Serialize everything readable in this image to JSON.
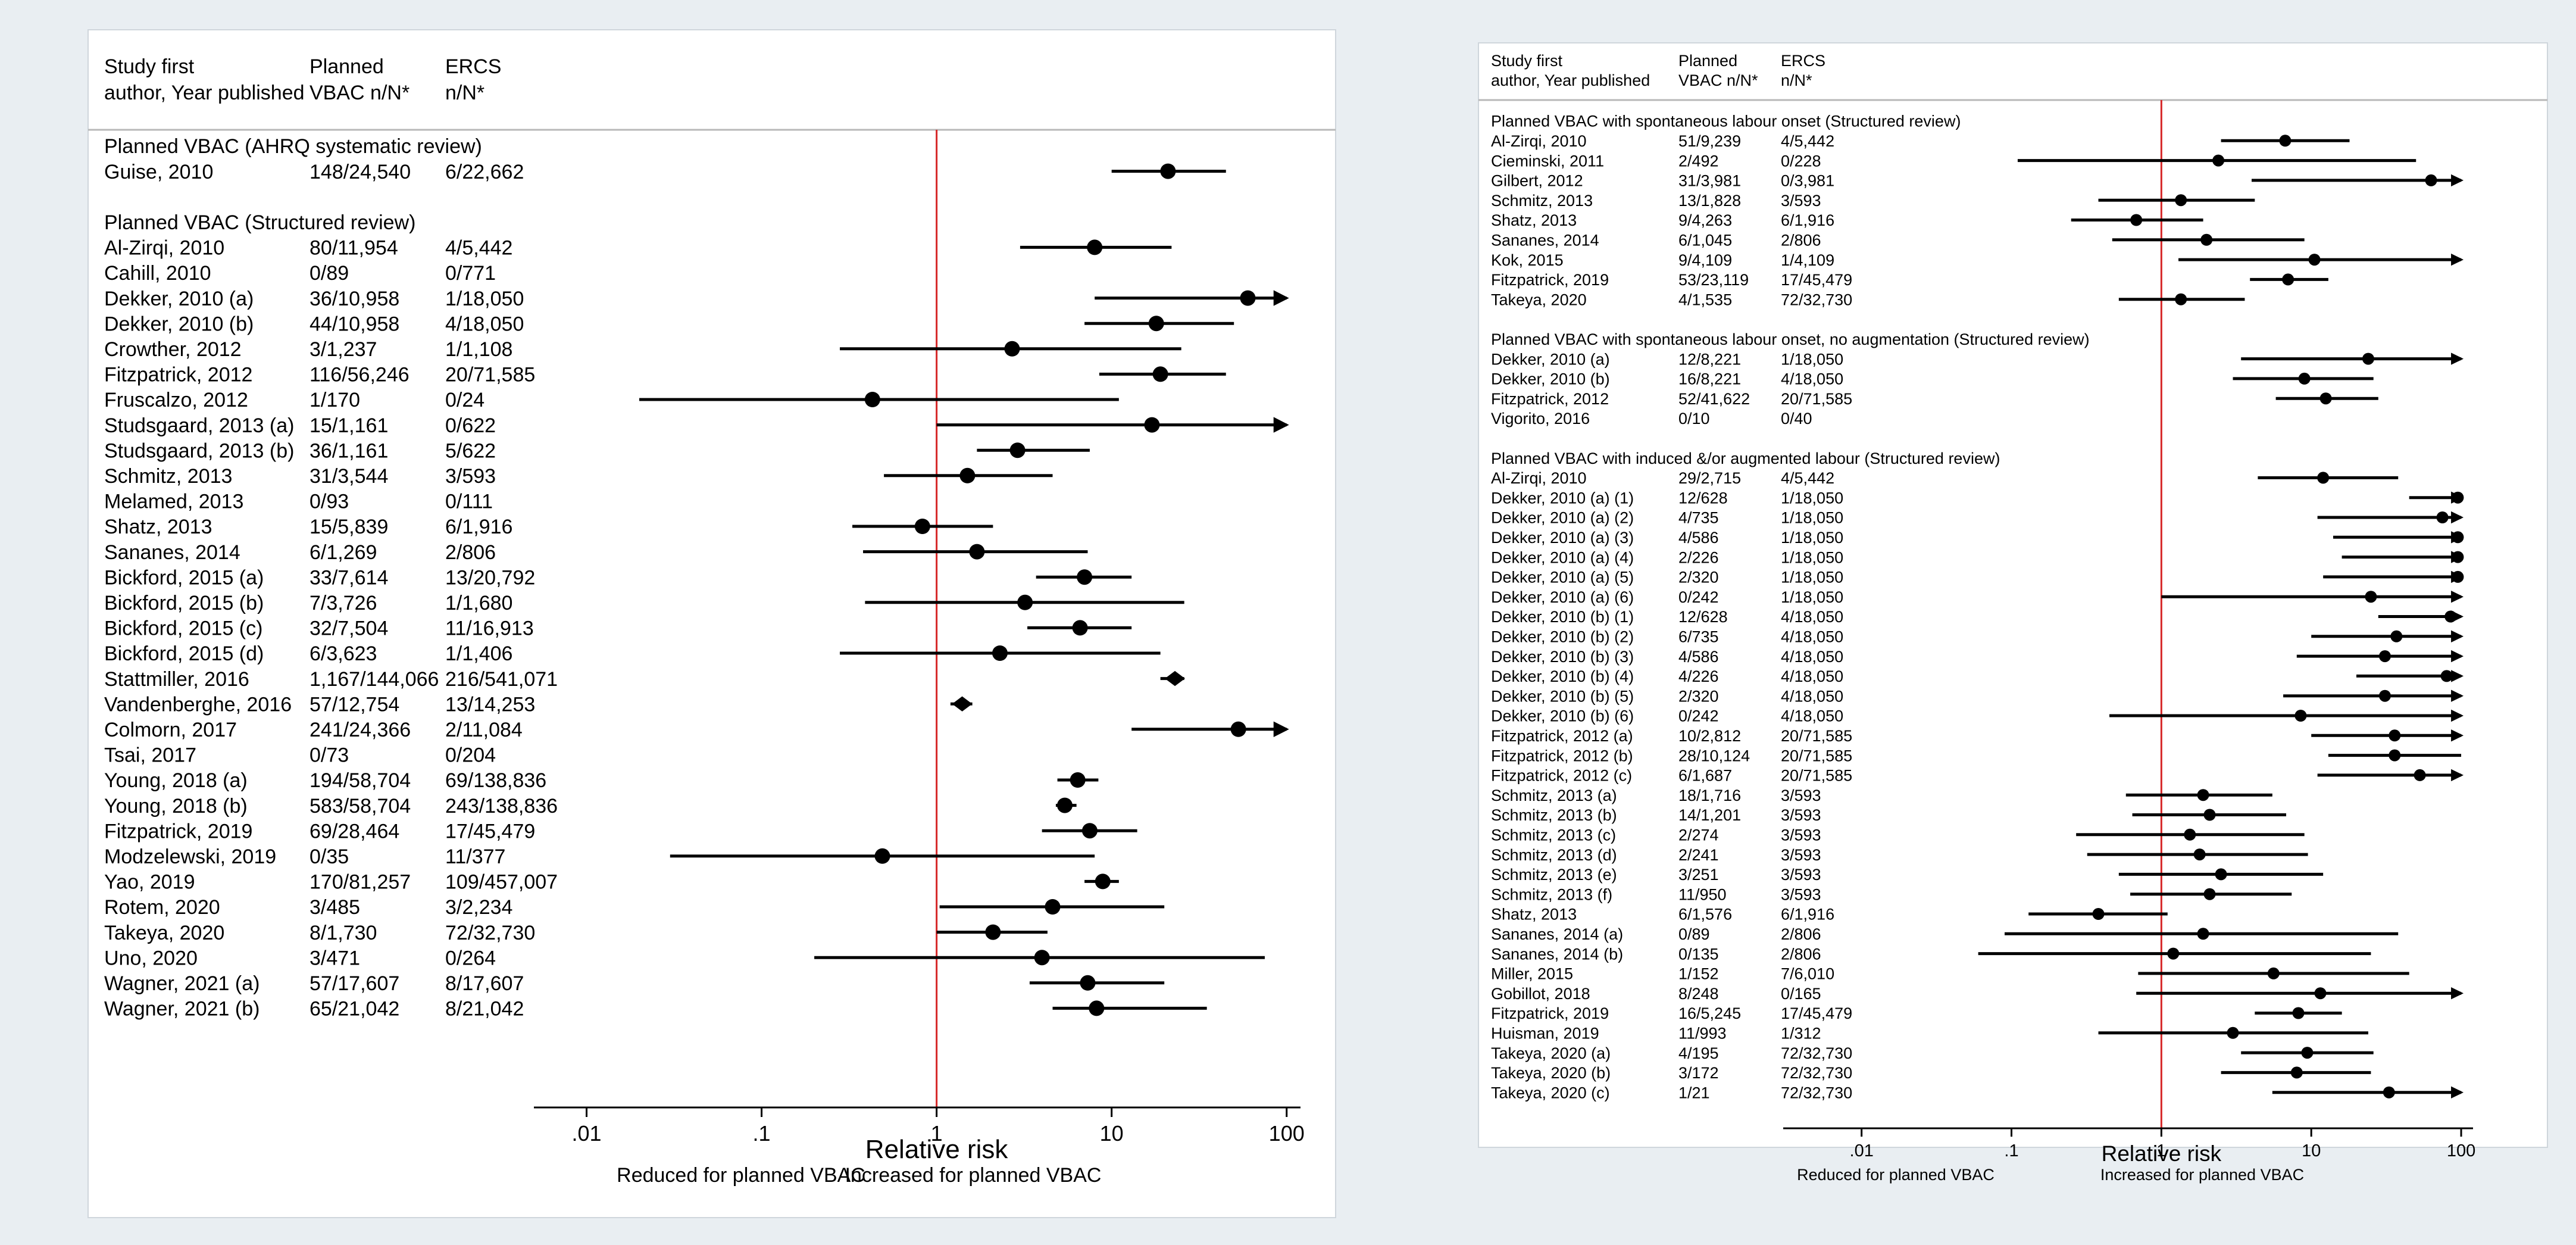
{
  "chart_data": [
    {
      "type": "forest",
      "scale": "log",
      "xlim": [
        0.005,
        120
      ],
      "reference_line": 1,
      "reference_color": "#d62728",
      "xticks": [
        {
          "value": 0.01,
          "label": ".01"
        },
        {
          "value": 0.1,
          "label": ".1"
        },
        {
          "value": 1,
          "label": "1"
        },
        {
          "value": 10,
          "label": "10"
        },
        {
          "value": 100,
          "label": "100"
        }
      ],
      "xlabel": "Relative risk",
      "footer_left": "Reduced for planned VBAC",
      "footer_right": "Increased for planned VBAC",
      "header": {
        "col1": [
          "Study first",
          "author, Year published"
        ],
        "col2": [
          "Planned",
          "VBAC n/N*"
        ],
        "col3": [
          "ERCS",
          "n/N*"
        ]
      },
      "rows": [
        {
          "kind": "group",
          "label": "Planned VBAC (AHRQ systematic review)"
        },
        {
          "kind": "study",
          "label": "Guise, 2010",
          "vbac": "148/24,540",
          "ercs": "6/22,662",
          "rr": 21,
          "lo": 10,
          "hi": 45
        },
        {
          "kind": "blank"
        },
        {
          "kind": "group",
          "label": "Planned VBAC (Structured review)"
        },
        {
          "kind": "study",
          "label": "Al-Zirqi, 2010",
          "vbac": "80/11,954",
          "ercs": "4/5,442",
          "rr": 8,
          "lo": 3,
          "hi": 22
        },
        {
          "kind": "study",
          "label": "Cahill, 2010",
          "vbac": "0/89",
          "ercs": "0/771"
        },
        {
          "kind": "study",
          "label": "Dekker, 2010 (a)",
          "vbac": "36/10,958",
          "ercs": "1/18,050",
          "rr": 60,
          "lo": 8,
          "hi": 100,
          "arrow": true
        },
        {
          "kind": "study",
          "label": "Dekker, 2010 (b)",
          "vbac": "44/10,958",
          "ercs": "4/18,050",
          "rr": 18,
          "lo": 7,
          "hi": 50
        },
        {
          "kind": "study",
          "label": "Crowther, 2012",
          "vbac": "3/1,237",
          "ercs": "1/1,108",
          "rr": 2.7,
          "lo": 0.28,
          "hi": 25
        },
        {
          "kind": "study",
          "label": "Fitzpatrick, 2012",
          "vbac": "116/56,246",
          "ercs": "20/71,585",
          "rr": 19,
          "lo": 8.5,
          "hi": 45
        },
        {
          "kind": "study",
          "label": "Fruscalzo, 2012",
          "vbac": "1/170",
          "ercs": "0/24",
          "rr": 0.43,
          "lo": 0.02,
          "hi": 11
        },
        {
          "kind": "study",
          "label": "Studsgaard,  2013 (a)",
          "vbac": "15/1,161",
          "ercs": "0/622",
          "rr": 17,
          "lo": 1,
          "hi": 100,
          "arrow": true
        },
        {
          "kind": "study",
          "label": "Studsgaard,  2013 (b)",
          "vbac": "36/1,161",
          "ercs": "5/622",
          "rr": 2.9,
          "lo": 1.7,
          "hi": 7.5
        },
        {
          "kind": "study",
          "label": "Schmitz, 2013",
          "vbac": "31/3,544",
          "ercs": "3/593",
          "rr": 1.5,
          "lo": 0.5,
          "hi": 4.6
        },
        {
          "kind": "study",
          "label": "Melamed, 2013",
          "vbac": "0/93",
          "ercs": "0/111"
        },
        {
          "kind": "study",
          "label": "Shatz, 2013",
          "vbac": "15/5,839",
          "ercs": "6/1,916",
          "rr": 0.83,
          "lo": 0.33,
          "hi": 2.1
        },
        {
          "kind": "study",
          "label": "Sananes, 2014",
          "vbac": "6/1,269",
          "ercs": "2/806",
          "rr": 1.7,
          "lo": 0.38,
          "hi": 7.3
        },
        {
          "kind": "study",
          "label": "Bickford, 2015 (a)",
          "vbac": "33/7,614",
          "ercs": "13/20,792",
          "rr": 7,
          "lo": 3.7,
          "hi": 13
        },
        {
          "kind": "study",
          "label": "Bickford, 2015 (b)",
          "vbac": "7/3,726",
          "ercs": "1/1,680",
          "rr": 3.2,
          "lo": 0.39,
          "hi": 26
        },
        {
          "kind": "study",
          "label": "Bickford, 2015 (c)",
          "vbac": "32/7,504",
          "ercs": "11/16,913",
          "rr": 6.6,
          "lo": 3.3,
          "hi": 13
        },
        {
          "kind": "study",
          "label": "Bickford, 2015 (d)",
          "vbac": "6/3,623",
          "ercs": "1/1,406",
          "rr": 2.3,
          "lo": 0.28,
          "hi": 19
        },
        {
          "kind": "study",
          "label": "Stattmiller, 2016",
          "vbac": "1,167/144,066",
          "ercs": "216/541,071",
          "rr": 23,
          "lo": 19,
          "hi": 26,
          "diamond": true
        },
        {
          "kind": "study",
          "label": "Vandenberghe, 2016",
          "vbac": "57/12,754",
          "ercs": "13/14,253",
          "rr": 1.4,
          "lo": 1.2,
          "hi": 1.6,
          "diamond": true
        },
        {
          "kind": "study",
          "label": "Colmorn, 2017",
          "vbac": "241/24,366",
          "ercs": "2/11,084",
          "rr": 53,
          "lo": 13,
          "hi": 100,
          "arrow": true
        },
        {
          "kind": "study",
          "label": "Tsai, 2017",
          "vbac": "0/73",
          "ercs": "0/204"
        },
        {
          "kind": "study",
          "label": "Young, 2018 (a)",
          "vbac": "194/58,704",
          "ercs": "69/138,836",
          "rr": 6.4,
          "lo": 4.9,
          "hi": 8.4
        },
        {
          "kind": "study",
          "label": "Young, 2018 (b)",
          "vbac": "583/58,704",
          "ercs": "243/138,836",
          "rr": 5.4,
          "lo": 4.8,
          "hi": 6.3
        },
        {
          "kind": "study",
          "label": "Fitzpatrick, 2019",
          "vbac": "69/28,464",
          "ercs": "17/45,479",
          "rr": 7.5,
          "lo": 4,
          "hi": 14
        },
        {
          "kind": "study",
          "label": "Modzelewski, 2019",
          "vbac": "0/35",
          "ercs": "11/377",
          "rr": 0.49,
          "lo": 0.03,
          "hi": 8
        },
        {
          "kind": "study",
          "label": "Yao, 2019",
          "vbac": "170/81,257",
          "ercs": "109/457,007",
          "rr": 8.9,
          "lo": 7,
          "hi": 11
        },
        {
          "kind": "study",
          "label": "Rotem, 2020",
          "vbac": "3/485",
          "ercs": "3/2,234",
          "rr": 4.6,
          "lo": 1.04,
          "hi": 20
        },
        {
          "kind": "study",
          "label": "Takeya, 2020",
          "vbac": "8/1,730",
          "ercs": "72/32,730",
          "rr": 2.1,
          "lo": 1,
          "hi": 4.3
        },
        {
          "kind": "study",
          "label": "Uno, 2020",
          "vbac": "3/471",
          "ercs": "0/264",
          "rr": 4,
          "lo": 0.2,
          "hi": 75
        },
        {
          "kind": "study",
          "label": "Wagner, 2021 (a)",
          "vbac": "57/17,607",
          "ercs": "8/17,607",
          "rr": 7.3,
          "lo": 3.4,
          "hi": 20
        },
        {
          "kind": "study",
          "label": "Wagner, 2021 (b)",
          "vbac": "65/21,042",
          "ercs": "8/21,042",
          "rr": 8.2,
          "lo": 4.6,
          "hi": 35
        }
      ]
    },
    {
      "type": "forest",
      "scale": "log",
      "xlim": [
        0.003,
        120
      ],
      "reference_line": 1,
      "reference_color": "#d62728",
      "xticks": [
        {
          "value": 0.01,
          "label": ".01"
        },
        {
          "value": 0.1,
          "label": ".1"
        },
        {
          "value": 1,
          "label": "1"
        },
        {
          "value": 10,
          "label": "10"
        },
        {
          "value": 100,
          "label": "100"
        }
      ],
      "xlabel": "Relative risk",
      "footer_left": "Reduced for planned VBAC",
      "footer_right": "Increased for planned VBAC",
      "header": {
        "col1": [
          "Study first",
          "author, Year published"
        ],
        "col2": [
          "Planned",
          "VBAC n/N*"
        ],
        "col3": [
          "ERCS",
          "n/N*"
        ]
      },
      "rows": [
        {
          "kind": "group",
          "label": "Planned VBAC with spontaneous labour onset (Structured review)"
        },
        {
          "kind": "study",
          "label": "Al-Zirqi, 2010",
          "vbac": "51/9,239",
          "ercs": "4/5,442",
          "rr": 6.7,
          "lo": 2.5,
          "hi": 18
        },
        {
          "kind": "study",
          "label": "Cieminski, 2011",
          "vbac": "2/492",
          "ercs": "0/228",
          "rr": 2.4,
          "lo": 0.11,
          "hi": 50
        },
        {
          "kind": "study",
          "label": "Gilbert, 2012",
          "vbac": "31/3,981",
          "ercs": "0/3,981",
          "rr": 63,
          "lo": 4,
          "hi": 100,
          "arrow": true
        },
        {
          "kind": "study",
          "label": "Schmitz, 2013",
          "vbac": "13/1,828",
          "ercs": "3/593",
          "rr": 1.35,
          "lo": 0.38,
          "hi": 4.2
        },
        {
          "kind": "study",
          "label": "Shatz, 2013",
          "vbac": "9/4,263",
          "ercs": "6/1,916",
          "rr": 0.68,
          "lo": 0.25,
          "hi": 1.9
        },
        {
          "kind": "study",
          "label": "Sananes, 2014",
          "vbac": "6/1,045",
          "ercs": "2/806",
          "rr": 2,
          "lo": 0.47,
          "hi": 9
        },
        {
          "kind": "study",
          "label": "Kok, 2015",
          "vbac": "9/4,109",
          "ercs": "1/4,109",
          "rr": 10.5,
          "lo": 1.3,
          "hi": 100,
          "arrow": true
        },
        {
          "kind": "study",
          "label": "Fitzpatrick, 2019",
          "vbac": "53/23,119",
          "ercs": "17/45,479",
          "rr": 7,
          "lo": 3.9,
          "hi": 13
        },
        {
          "kind": "study",
          "label": "Takeya, 2020",
          "vbac": "4/1,535",
          "ercs": "72/32,730",
          "rr": 1.35,
          "lo": 0.52,
          "hi": 3.6
        },
        {
          "kind": "blank"
        },
        {
          "kind": "group",
          "label": "Planned VBAC with spontaneous labour onset, no augmentation (Structured review)"
        },
        {
          "kind": "study",
          "label": "Dekker, 2010 (a)",
          "vbac": "12/8,221",
          "ercs": "1/18,050",
          "rr": 24,
          "lo": 3.4,
          "hi": 100,
          "arrow": true
        },
        {
          "kind": "study",
          "label": "Dekker, 2010 (b)",
          "vbac": "16/8,221",
          "ercs": "4/18,050",
          "rr": 9,
          "lo": 3,
          "hi": 26
        },
        {
          "kind": "study",
          "label": "Fitzpatrick, 2012",
          "vbac": "52/41,622",
          "ercs": "20/71,585",
          "rr": 12.5,
          "lo": 5.8,
          "hi": 28
        },
        {
          "kind": "study",
          "label": "Vigorito, 2016",
          "vbac": "0/10",
          "ercs": "0/40"
        },
        {
          "kind": "blank"
        },
        {
          "kind": "group",
          "label": "Planned VBAC with induced &/or augmented labour (Structured review)"
        },
        {
          "kind": "study",
          "label": "Al-Zirqi, 2010",
          "vbac": "29/2,715",
          "ercs": "4/5,442",
          "rr": 12,
          "lo": 4.4,
          "hi": 38
        },
        {
          "kind": "study",
          "label": "Dekker, 2010 (a) (1)",
          "vbac": "12/628",
          "ercs": "1/18,050",
          "rr": 95,
          "lo": 45,
          "hi": 100,
          "arrow": true
        },
        {
          "kind": "study",
          "label": "Dekker, 2010 (a) (2)",
          "vbac": "4/735",
          "ercs": "1/18,050",
          "rr": 75,
          "lo": 11,
          "hi": 100,
          "arrow": true
        },
        {
          "kind": "study",
          "label": "Dekker, 2010 (a) (3)",
          "vbac": "4/586",
          "ercs": "1/18,050",
          "rr": 95,
          "lo": 14,
          "hi": 100,
          "arrow": true
        },
        {
          "kind": "study",
          "label": "Dekker, 2010 (a) (4)",
          "vbac": "2/226",
          "ercs": "1/18,050",
          "rr": 95,
          "lo": 16,
          "hi": 100,
          "arrow": true
        },
        {
          "kind": "study",
          "label": "Dekker, 2010 (a) (5)",
          "vbac": "2/320",
          "ercs": "1/18,050",
          "rr": 95,
          "lo": 12,
          "hi": 100,
          "arrow": true
        },
        {
          "kind": "study",
          "label": "Dekker, 2010 (a) (6)",
          "vbac": "0/242",
          "ercs": "1/18,050",
          "rr": 25,
          "lo": 1,
          "hi": 100,
          "arrow": true
        },
        {
          "kind": "study",
          "label": "Dekker, 2010 (b) (1)",
          "vbac": "12/628",
          "ercs": "4/18,050",
          "rr": 85,
          "lo": 28,
          "hi": 100,
          "arrow": true
        },
        {
          "kind": "study",
          "label": "Dekker, 2010 (b) (2)",
          "vbac": "6/735",
          "ercs": "4/18,050",
          "rr": 37,
          "lo": 10,
          "hi": 100,
          "arrow": true
        },
        {
          "kind": "study",
          "label": "Dekker, 2010 (b) (3)",
          "vbac": "4/586",
          "ercs": "4/18,050",
          "rr": 31,
          "lo": 8,
          "hi": 100,
          "arrow": true
        },
        {
          "kind": "study",
          "label": "Dekker, 2010 (b) (4)",
          "vbac": "4/226",
          "ercs": "4/18,050",
          "rr": 80,
          "lo": 20,
          "hi": 100,
          "arrow": true
        },
        {
          "kind": "study",
          "label": "Dekker, 2010 (b) (5)",
          "vbac": "2/320",
          "ercs": "4/18,050",
          "rr": 31,
          "lo": 6.5,
          "hi": 100,
          "arrow": true
        },
        {
          "kind": "study",
          "label": "Dekker, 2010 (b) (6)",
          "vbac": "0/242",
          "ercs": "4/18,050",
          "rr": 8.5,
          "lo": 0.45,
          "hi": 100,
          "arrow": true
        },
        {
          "kind": "study",
          "label": "Fitzpatrick, 2012 (a)",
          "vbac": "10/2,812",
          "ercs": "20/71,585",
          "rr": 36,
          "lo": 10,
          "hi": 100,
          "arrow": true
        },
        {
          "kind": "study",
          "label": "Fitzpatrick, 2012 (b)",
          "vbac": "28/10,124",
          "ercs": "20/71,585",
          "rr": 36,
          "lo": 13,
          "hi": 100
        },
        {
          "kind": "study",
          "label": "Fitzpatrick, 2012 (c)",
          "vbac": "6/1,687",
          "ercs": "20/71,585",
          "rr": 53,
          "lo": 11,
          "hi": 100,
          "arrow": true
        },
        {
          "kind": "study",
          "label": "Schmitz, 2013 (a)",
          "vbac": "18/1,716",
          "ercs": "3/593",
          "rr": 1.9,
          "lo": 0.58,
          "hi": 5.5
        },
        {
          "kind": "study",
          "label": "Schmitz, 2013 (b)",
          "vbac": "14/1,201",
          "ercs": "3/593",
          "rr": 2.1,
          "lo": 0.64,
          "hi": 6.8
        },
        {
          "kind": "study",
          "label": "Schmitz, 2013 (c)",
          "vbac": "2/274",
          "ercs": "3/593",
          "rr": 1.55,
          "lo": 0.27,
          "hi": 9
        },
        {
          "kind": "study",
          "label": "Schmitz, 2013 (d)",
          "vbac": "2/241",
          "ercs": "3/593",
          "rr": 1.8,
          "lo": 0.32,
          "hi": 9.5
        },
        {
          "kind": "study",
          "label": "Schmitz, 2013 (e)",
          "vbac": "3/251",
          "ercs": "3/593",
          "rr": 2.5,
          "lo": 0.52,
          "hi": 12
        },
        {
          "kind": "study",
          "label": "Schmitz, 2013 (f)",
          "vbac": "11/950",
          "ercs": "3/593",
          "rr": 2.1,
          "lo": 0.62,
          "hi": 7.4
        },
        {
          "kind": "study",
          "label": "Shatz, 2013",
          "vbac": "6/1,576",
          "ercs": "6/1,916",
          "rr": 0.38,
          "lo": 0.13,
          "hi": 1.1
        },
        {
          "kind": "study",
          "label": "Sananes, 2014 (a)",
          "vbac": "0/89",
          "ercs": "2/806",
          "rr": 1.9,
          "lo": 0.09,
          "hi": 38
        },
        {
          "kind": "study",
          "label": "Sananes, 2014 (b)",
          "vbac": "0/135",
          "ercs": "2/806",
          "rr": 1.2,
          "lo": 0.06,
          "hi": 25
        },
        {
          "kind": "study",
          "label": "Miller, 2015",
          "vbac": "1/152",
          "ercs": "7/6,010",
          "rr": 5.6,
          "lo": 0.7,
          "hi": 45
        },
        {
          "kind": "study",
          "label": "Gobillot, 2018",
          "vbac": "8/248",
          "ercs": "0/165",
          "rr": 11.5,
          "lo": 0.68,
          "hi": 100,
          "arrow": true
        },
        {
          "kind": "study",
          "label": "Fitzpatrick, 2019",
          "vbac": "16/5,245",
          "ercs": "17/45,479",
          "rr": 8.2,
          "lo": 4.2,
          "hi": 16
        },
        {
          "kind": "study",
          "label": "Huisman, 2019",
          "vbac": "11/993",
          "ercs": "1/312",
          "rr": 3,
          "lo": 0.38,
          "hi": 24
        },
        {
          "kind": "study",
          "label": "Takeya, 2020 (a)",
          "vbac": "4/195",
          "ercs": "72/32,730",
          "rr": 9.4,
          "lo": 3.4,
          "hi": 26
        },
        {
          "kind": "study",
          "label": "Takeya, 2020 (b)",
          "vbac": "3/172",
          "ercs": "72/32,730",
          "rr": 8,
          "lo": 2.5,
          "hi": 25
        },
        {
          "kind": "study",
          "label": "Takeya, 2020 (c)",
          "vbac": "1/21",
          "ercs": "72/32,730",
          "rr": 33,
          "lo": 5.5,
          "hi": 100,
          "arrow": true
        }
      ]
    }
  ]
}
